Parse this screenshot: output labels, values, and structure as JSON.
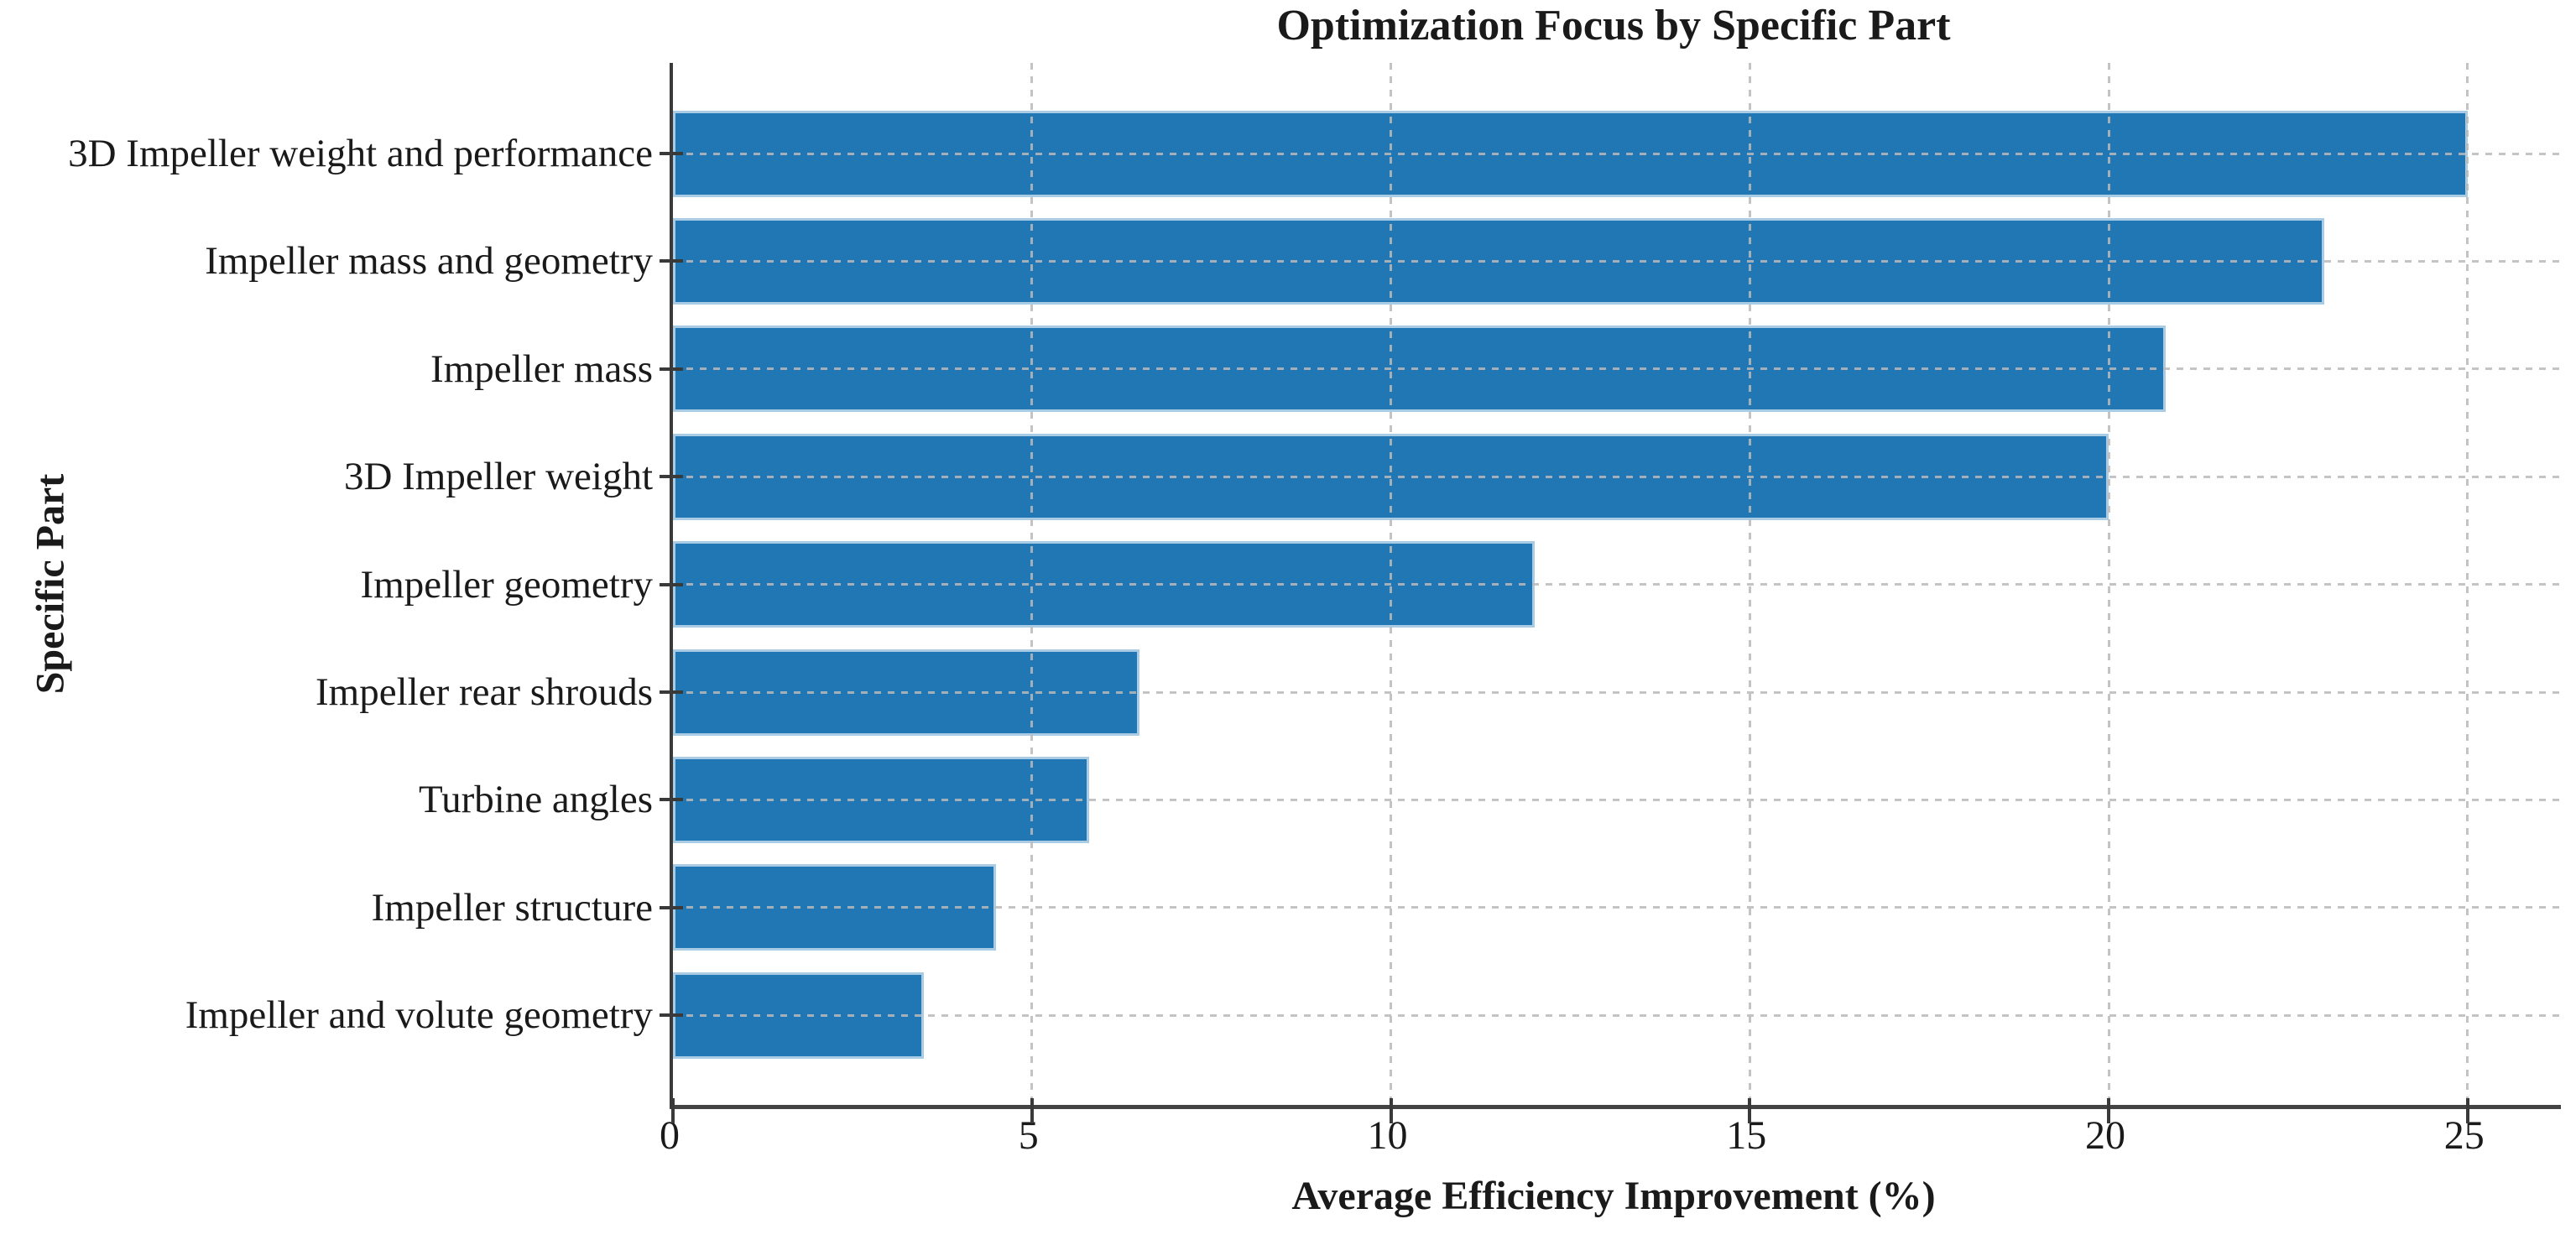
{
  "chart_data": {
    "type": "bar",
    "orientation": "horizontal",
    "title": "Optimization Focus by Specific Part",
    "xlabel": "Average Efficiency Improvement (%)",
    "ylabel": "Specific Part",
    "categories": [
      "3D Impeller weight and performance",
      "Impeller mass and geometry",
      "Impeller mass",
      "3D Impeller weight",
      "Impeller geometry",
      "Impeller rear shrouds",
      "Turbine angles",
      "Impeller structure",
      "Impeller and volute geometry"
    ],
    "values": [
      25.0,
      23.0,
      20.8,
      20.0,
      12.0,
      6.5,
      5.8,
      4.5,
      3.5
    ],
    "xticks": [
      0,
      5,
      10,
      15,
      20,
      25
    ],
    "xlim": [
      0,
      26.3
    ],
    "grid": true,
    "grid_style": "dashed",
    "legend": false,
    "colors": {
      "bar_fill": "#2077b4",
      "bar_edge": "#a9cbe4",
      "grid": "#bababa",
      "axis": "#3a3a3a",
      "text": "#1a1a1a"
    }
  }
}
